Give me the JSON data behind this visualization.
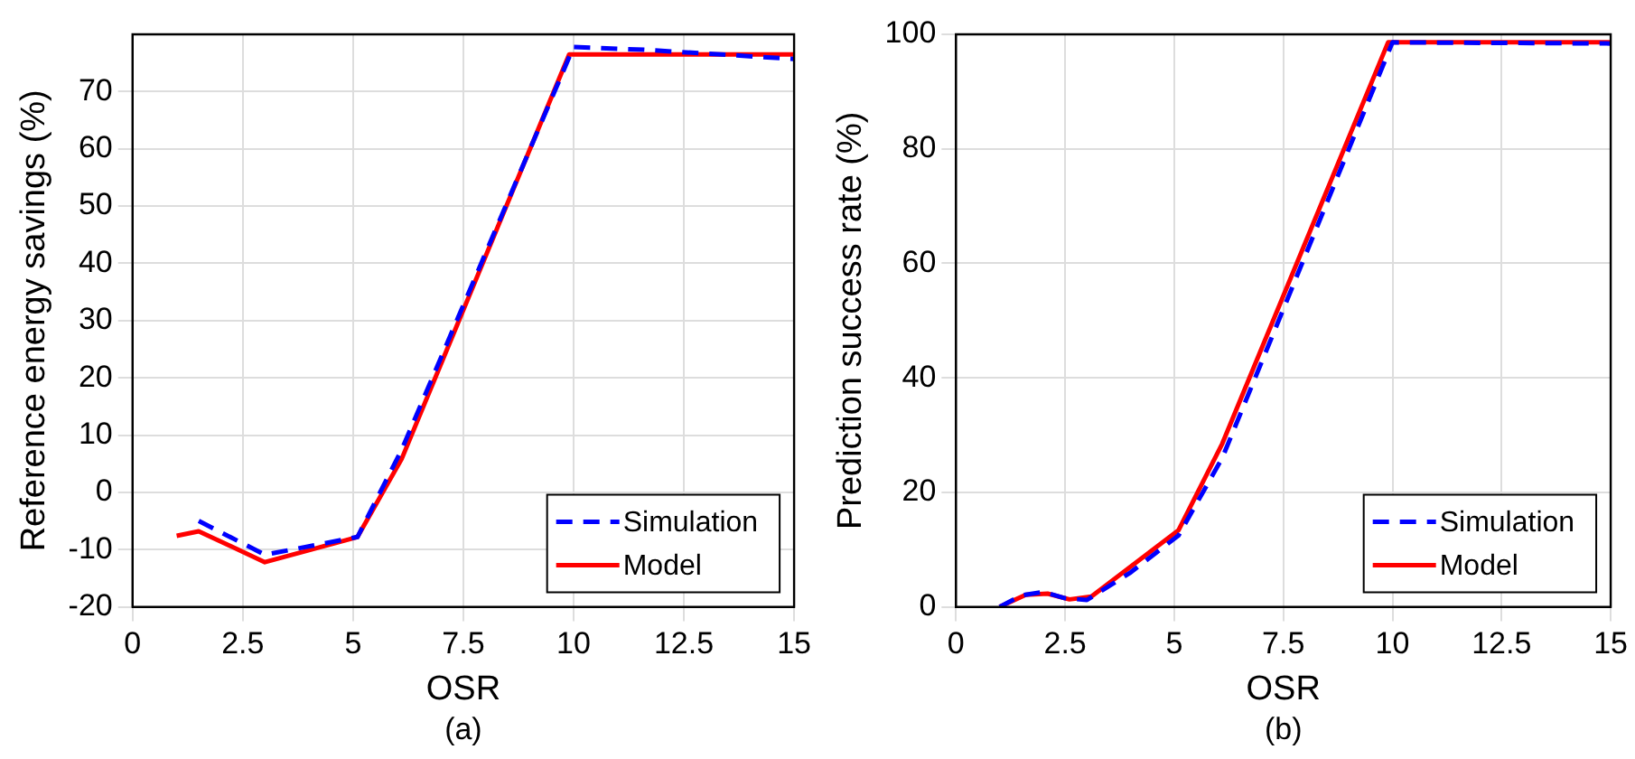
{
  "chart_data": [
    {
      "type": "line",
      "xlabel": "OSR",
      "ylabel": "Reference energy savings (%)",
      "annotations": [
        "(a)"
      ],
      "xlim": [
        0,
        15
      ],
      "xticks": [
        0,
        2.5,
        5,
        7.5,
        10,
        12.5,
        15
      ],
      "ylim": [
        -20,
        80
      ],
      "yticks": [
        -20,
        -10,
        0,
        10,
        20,
        30,
        40,
        50,
        60,
        70
      ],
      "grid": true,
      "legend": "bottom right",
      "marker": "none",
      "series": [
        {
          "name": "Simulation",
          "color": "#0000ff",
          "line_style": "dashed",
          "x": [
            1.5,
            3,
            5.1,
            6.1,
            10,
            11.6,
            15
          ],
          "values": [
            -5,
            -10.9,
            -7.8,
            7.4,
            77.8,
            77.3,
            75.7
          ]
        },
        {
          "name": "Model",
          "color": "#ff0000",
          "line_style": "solid",
          "x": [
            1,
            1.5,
            3,
            5.1,
            6.1,
            9.9,
            15
          ],
          "values": [
            -7.6,
            -6.8,
            -12.2,
            -7.8,
            5.8,
            76.5,
            76.5
          ]
        }
      ]
    },
    {
      "type": "line",
      "xlabel": "OSR",
      "ylabel": "Prediction success rate (%)",
      "annotations": [
        "(b)"
      ],
      "xlim": [
        0,
        15
      ],
      "xticks": [
        0,
        2.5,
        5,
        7.5,
        10,
        12.5,
        15
      ],
      "ylim": [
        0,
        100
      ],
      "yticks": [
        0,
        20,
        40,
        60,
        80,
        100
      ],
      "grid": true,
      "legend": "bottom right",
      "marker": "none",
      "series": [
        {
          "name": "Simulation",
          "color": "#0000ff",
          "line_style": "dashed",
          "x": [
            1,
            1.5,
            2,
            2.5,
            3,
            4,
            5.1,
            6.1,
            7.5,
            10,
            15
          ],
          "values": [
            0,
            2,
            2.6,
            1.5,
            1.2,
            6,
            12.5,
            26,
            52,
            98.6,
            98.4
          ]
        },
        {
          "name": "Model",
          "color": "#ff0000",
          "line_style": "solid",
          "x": [
            1,
            1.6,
            2.1,
            2.6,
            3.1,
            5.1,
            6.1,
            9.9,
            15
          ],
          "values": [
            0,
            2.1,
            2.3,
            1.3,
            1.8,
            13.4,
            28.5,
            98.6,
            98.6
          ]
        }
      ]
    }
  ]
}
